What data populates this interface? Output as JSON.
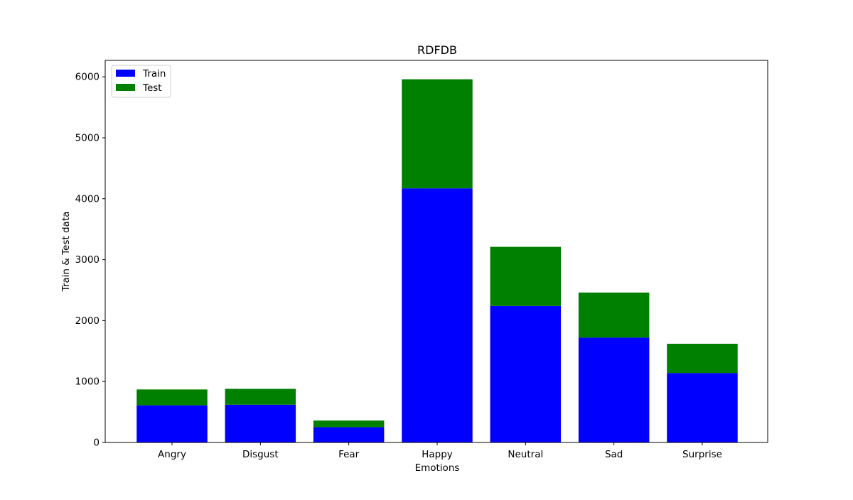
{
  "chart_data": {
    "type": "bar",
    "stacked": true,
    "title": "RDFDB",
    "xlabel": "Emotions",
    "ylabel": "Train & Test data",
    "categories": [
      "Angry",
      "Disgust",
      "Fear",
      "Happy",
      "Neutral",
      "Sad",
      "Surprise"
    ],
    "series": [
      {
        "name": "Train",
        "color": "#0000ff",
        "values": [
          610,
          620,
          250,
          4170,
          2240,
          1720,
          1140
        ]
      },
      {
        "name": "Test",
        "color": "#008000",
        "values": [
          260,
          260,
          110,
          1790,
          970,
          740,
          480
        ]
      }
    ],
    "ylim": [
      0,
      6270
    ],
    "yticks": [
      0,
      1000,
      2000,
      3000,
      4000,
      5000,
      6000
    ],
    "legend_position": "top-left",
    "grid": false
  }
}
